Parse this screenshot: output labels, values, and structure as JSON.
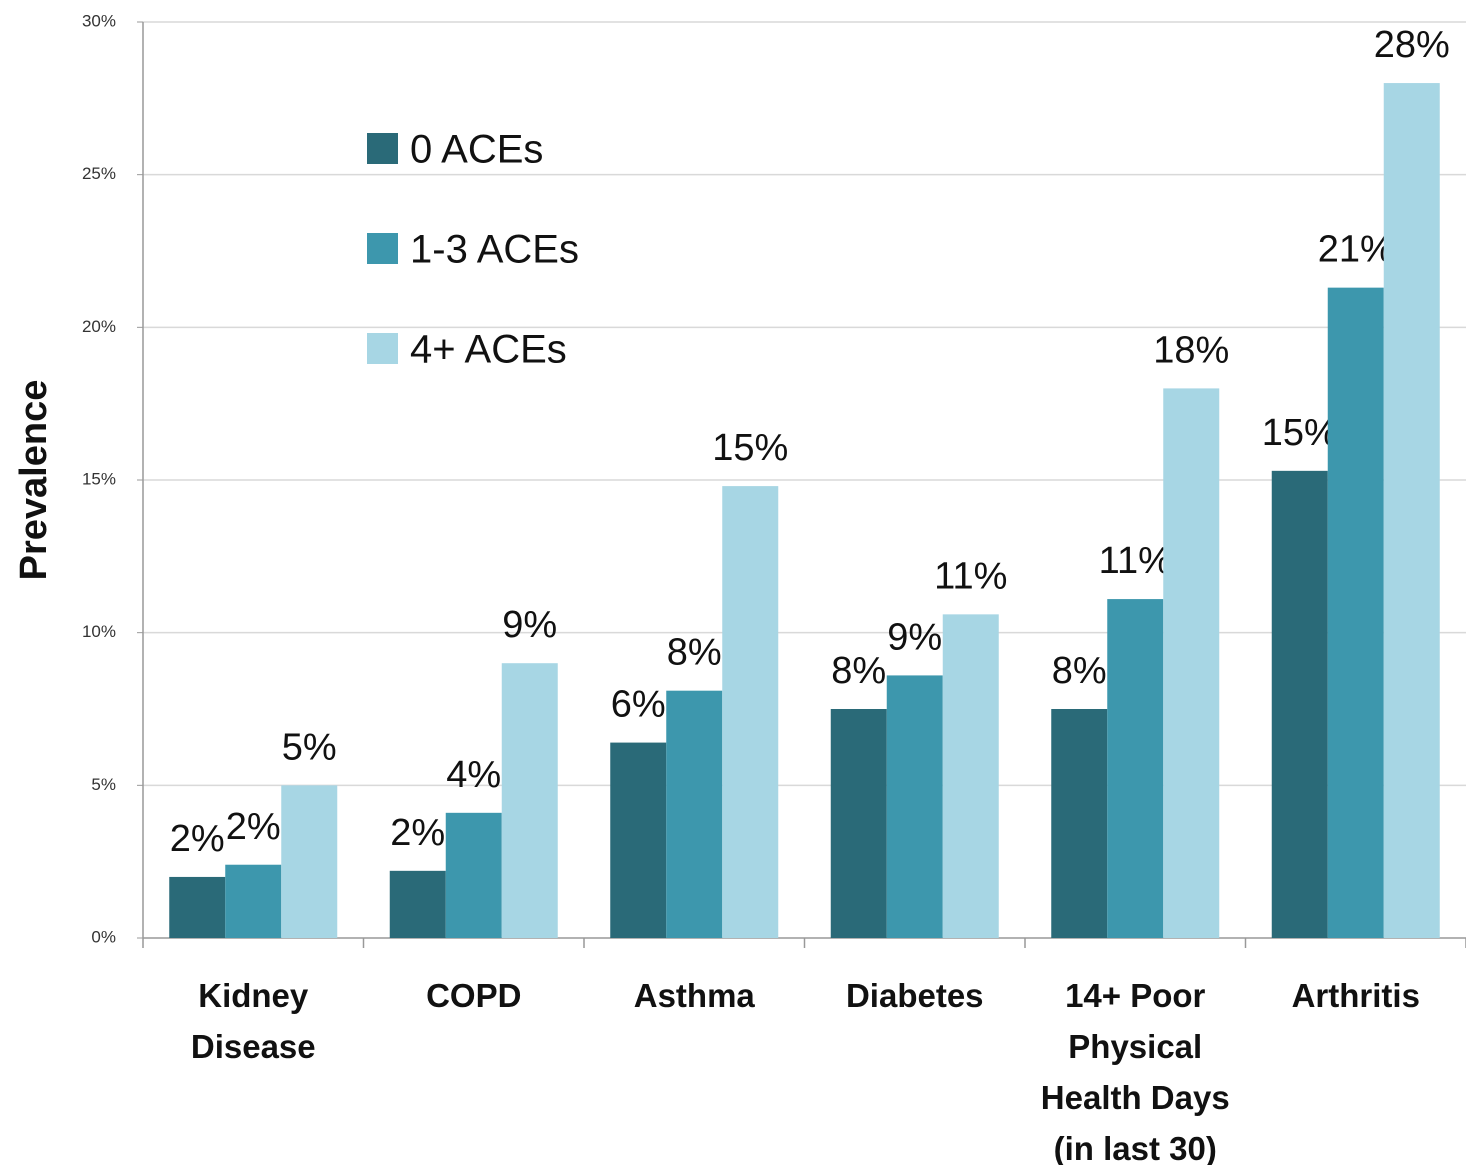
{
  "chart_data": {
    "type": "bar",
    "y_label": "Prevalence",
    "categories": [
      "Kidney Disease",
      "COPD",
      "Asthma",
      "Diabetes",
      "14+ Poor Physical Health Days (in last 30)",
      "Arthritis"
    ],
    "series": [
      {
        "name": "0 ACEs",
        "color": "#2a6a78",
        "values": [
          2.0,
          2.2,
          6.4,
          7.5,
          7.5,
          15.3
        ],
        "value_labels": [
          "2%",
          "2%",
          "6%",
          "8%",
          "8%",
          "15%"
        ]
      },
      {
        "name": "1-3 ACEs",
        "color": "#3d97ad",
        "values": [
          2.4,
          4.1,
          8.1,
          8.6,
          11.1,
          21.3
        ],
        "value_labels": [
          "2%",
          "4%",
          "8%",
          "9%",
          "11%",
          "21%"
        ]
      },
      {
        "name": "4+ ACEs",
        "color": "#a7d6e4",
        "values": [
          5.0,
          9.0,
          14.8,
          10.6,
          18.0,
          28.0
        ],
        "value_labels": [
          "5%",
          "9%",
          "15%",
          "11%",
          "18%",
          "28%"
        ]
      }
    ],
    "ylim": [
      0,
      30
    ],
    "yticks": [
      {
        "value": 0,
        "label": "0%"
      },
      {
        "value": 5,
        "label": "5%"
      },
      {
        "value": 10,
        "label": "10%"
      },
      {
        "value": 15,
        "label": "15%"
      },
      {
        "value": 20,
        "label": "20%"
      },
      {
        "value": 25,
        "label": "25%"
      },
      {
        "value": 30,
        "label": "30%"
      }
    ],
    "grid": true,
    "legend": "upper-left"
  }
}
